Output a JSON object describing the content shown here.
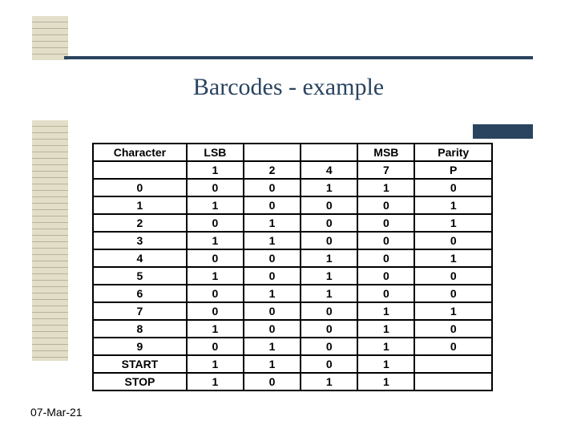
{
  "title": "Barcodes - example",
  "date": "07-Mar-21",
  "table": {
    "type": "table",
    "columns": [
      "Character",
      "LSB",
      "",
      "",
      "MSB",
      "Parity"
    ],
    "header_sub": [
      "",
      "1",
      "2",
      "4",
      "7",
      "P"
    ],
    "rows": [
      [
        "0",
        "0",
        "0",
        "1",
        "1",
        "0"
      ],
      [
        "1",
        "1",
        "0",
        "0",
        "0",
        "1"
      ],
      [
        "2",
        "0",
        "1",
        "0",
        "0",
        "1"
      ],
      [
        "3",
        "1",
        "1",
        "0",
        "0",
        "0"
      ],
      [
        "4",
        "0",
        "0",
        "1",
        "0",
        "1"
      ],
      [
        "5",
        "1",
        "0",
        "1",
        "0",
        "0"
      ],
      [
        "6",
        "0",
        "1",
        "1",
        "0",
        "0"
      ],
      [
        "7",
        "0",
        "0",
        "0",
        "1",
        "1"
      ],
      [
        "8",
        "1",
        "0",
        "0",
        "1",
        "0"
      ],
      [
        "9",
        "0",
        "1",
        "0",
        "1",
        "0"
      ],
      [
        "START",
        "1",
        "1",
        "0",
        "1",
        ""
      ],
      [
        "STOP",
        "1",
        "0",
        "1",
        "1",
        ""
      ]
    ],
    "border_color": "#000000",
    "background_color": "#ffffff",
    "font_size_pt": 11,
    "accent_color": "#2a4460",
    "ruled_block_color": "#e2dec8"
  }
}
